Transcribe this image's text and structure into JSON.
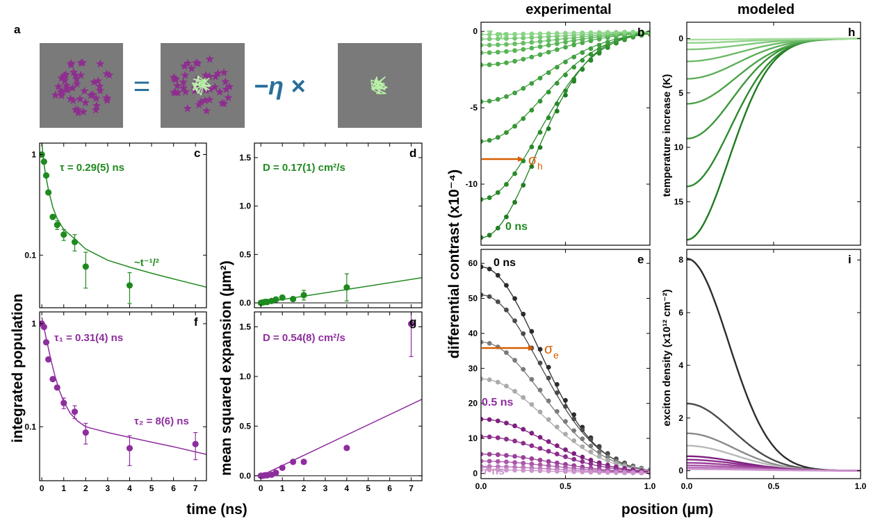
{
  "headers": {
    "left": "experimental",
    "right": "modeled"
  },
  "xlabels": {
    "left": "time (ns)",
    "right": "position (µm)"
  },
  "ylabels": {
    "population": "integrated population",
    "msd": "mean squared expansion (µm²)",
    "contrast": "differential contrast (x10⁻⁴)",
    "temperature": "temperature increase (K)",
    "density": "exciton density (x10¹² cm⁻²)"
  },
  "panel_a": {
    "label": "a",
    "equals": "=",
    "minus_eta": "−η ×",
    "colors": {
      "background": "#7a7a7a",
      "exciton": "#8e2e8e",
      "heat": "#b8f0a8"
    }
  },
  "chart_data": [
    {
      "id": "c",
      "label": "c",
      "type": "scatter",
      "yscale": "log",
      "xlim": [
        -0.1,
        7.5
      ],
      "ylim": [
        0.03,
        1.3
      ],
      "xticks": [
        0,
        1,
        2,
        3,
        4,
        5,
        6,
        7
      ],
      "yticks": [
        0.1,
        1
      ],
      "yticklabels": [
        "0.1",
        "1"
      ],
      "color": "#1f8a1f",
      "annotations": [
        "τ = 0.29(5) ns",
        "~t⁻¹/²"
      ],
      "points": [
        {
          "x": 0.0,
          "y": 1.0,
          "err": 0
        },
        {
          "x": 0.1,
          "y": 0.85,
          "err": 0
        },
        {
          "x": 0.2,
          "y": 0.62,
          "err": 0
        },
        {
          "x": 0.3,
          "y": 0.42,
          "err": 0
        },
        {
          "x": 0.5,
          "y": 0.24,
          "err": 0
        },
        {
          "x": 0.7,
          "y": 0.2,
          "err": 0.02
        },
        {
          "x": 1.0,
          "y": 0.16,
          "err": 0.02
        },
        {
          "x": 1.5,
          "y": 0.135,
          "err": 0.025
        },
        {
          "x": 2.0,
          "y": 0.077,
          "err": 0.03
        },
        {
          "x": 4.0,
          "y": 0.05,
          "err": 0.017
        }
      ],
      "fit": {
        "x": [
          0.0,
          0.1,
          0.2,
          0.3,
          0.5,
          0.7,
          1.0,
          1.5,
          2.0,
          3.0,
          4.0,
          5.0,
          6.0,
          7.5
        ],
        "y": [
          1.3,
          0.8,
          0.58,
          0.45,
          0.3,
          0.23,
          0.18,
          0.145,
          0.115,
          0.089,
          0.076,
          0.066,
          0.058,
          0.048
        ]
      }
    },
    {
      "id": "d",
      "label": "d",
      "type": "scatter",
      "xlim": [
        -0.3,
        7.5
      ],
      "ylim": [
        -0.05,
        1.65
      ],
      "xticks": [
        0,
        1,
        2,
        3,
        4,
        5,
        6,
        7
      ],
      "yticks": [
        0,
        0.5,
        1,
        1.5
      ],
      "yticklabels": [
        "0.0",
        "0.5",
        "1.0",
        "1.5"
      ],
      "color": "#1f8a1f",
      "annotations": [
        "D = 0.17(1) cm²/s"
      ],
      "points": [
        {
          "x": 0.0,
          "y": 0.0,
          "err": 0
        },
        {
          "x": 0.1,
          "y": 0.005,
          "err": 0
        },
        {
          "x": 0.2,
          "y": 0.01,
          "err": 0
        },
        {
          "x": 0.3,
          "y": 0.01,
          "err": 0
        },
        {
          "x": 0.5,
          "y": 0.02,
          "err": 0
        },
        {
          "x": 0.7,
          "y": 0.035,
          "err": 0
        },
        {
          "x": 1.0,
          "y": 0.055,
          "err": 0
        },
        {
          "x": 1.5,
          "y": 0.04,
          "err": 0
        },
        {
          "x": 2.0,
          "y": 0.08,
          "err": 0.05
        },
        {
          "x": 4.0,
          "y": 0.16,
          "err": 0.14
        }
      ],
      "fit": {
        "x": [
          0,
          7.5
        ],
        "y": [
          0.0,
          0.26
        ]
      }
    },
    {
      "id": "f",
      "label": "f",
      "type": "scatter",
      "yscale": "log",
      "xlim": [
        -0.1,
        7.5
      ],
      "ylim": [
        0.03,
        1.3
      ],
      "xticks": [
        0,
        1,
        2,
        3,
        4,
        5,
        6,
        7
      ],
      "yticks": [
        0.1,
        1
      ],
      "yticklabels": [
        "0.1",
        "1"
      ],
      "color": "#8e2e9e",
      "annotations": [
        "τ₁ = 0.31(4) ns",
        "τ₂ = 8(6) ns"
      ],
      "points": [
        {
          "x": 0.0,
          "y": 1.0,
          "err": 0
        },
        {
          "x": 0.1,
          "y": 0.93,
          "err": 0
        },
        {
          "x": 0.2,
          "y": 0.66,
          "err": 0
        },
        {
          "x": 0.3,
          "y": 0.45,
          "err": 0
        },
        {
          "x": 0.5,
          "y": 0.29,
          "err": 0
        },
        {
          "x": 0.7,
          "y": 0.24,
          "err": 0
        },
        {
          "x": 1.0,
          "y": 0.17,
          "err": 0.02
        },
        {
          "x": 1.5,
          "y": 0.14,
          "err": 0.02
        },
        {
          "x": 2.0,
          "y": 0.088,
          "err": 0.02
        },
        {
          "x": 4.0,
          "y": 0.062,
          "err": 0.02
        },
        {
          "x": 7.0,
          "y": 0.068,
          "err": 0.02
        }
      ],
      "fit": {
        "x": [
          0.0,
          0.2,
          0.4,
          0.6,
          0.8,
          1.0,
          1.3,
          1.6,
          2.0,
          3.0,
          4.0,
          5.0,
          6.0,
          7.5
        ],
        "y": [
          1.15,
          0.72,
          0.46,
          0.31,
          0.225,
          0.175,
          0.135,
          0.115,
          0.1,
          0.088,
          0.079,
          0.071,
          0.064,
          0.054
        ]
      }
    },
    {
      "id": "g",
      "label": "g",
      "type": "scatter",
      "xlim": [
        -0.3,
        7.5
      ],
      "ylim": [
        -0.05,
        1.65
      ],
      "xticks": [
        0,
        1,
        2,
        3,
        4,
        5,
        6,
        7
      ],
      "yticks": [
        0,
        0.5,
        1,
        1.5
      ],
      "yticklabels": [
        "0.0",
        "0.5",
        "1.0",
        "1.5"
      ],
      "color": "#8e2e9e",
      "annotations": [
        "D = 0.54(8) cm²/s"
      ],
      "points": [
        {
          "x": 0.0,
          "y": 0.0,
          "err": 0
        },
        {
          "x": 0.1,
          "y": 0.0,
          "err": 0
        },
        {
          "x": 0.2,
          "y": 0.005,
          "err": 0
        },
        {
          "x": 0.3,
          "y": 0.005,
          "err": 0
        },
        {
          "x": 0.5,
          "y": 0.01,
          "err": 0
        },
        {
          "x": 0.7,
          "y": 0.03,
          "err": 0
        },
        {
          "x": 1.0,
          "y": 0.08,
          "err": 0
        },
        {
          "x": 1.5,
          "y": 0.14,
          "err": 0
        },
        {
          "x": 2.0,
          "y": 0.14,
          "err": 0
        },
        {
          "x": 4.0,
          "y": 0.28,
          "err": 0
        },
        {
          "x": 7.0,
          "y": 1.53,
          "err": 0.33
        }
      ],
      "fit": {
        "x": [
          -0.1,
          7.5
        ],
        "y": [
          -0.01,
          0.77
        ]
      }
    },
    {
      "id": "b",
      "label": "b",
      "type": "line",
      "xlim": [
        0,
        1.0
      ],
      "ylim": [
        -14,
        0.6
      ],
      "yticks": [
        0,
        -5,
        -10
      ],
      "yticklabels": [
        "0",
        "-5",
        "-10"
      ],
      "annotations": [
        "7 ns",
        "0 ns",
        "σ",
        "h"
      ],
      "series": [
        {
          "amp": -13.5,
          "sigma": 0.32,
          "color": "#217d21"
        },
        {
          "amp": -11.0,
          "sigma": 0.34,
          "color": "#2a8a2a"
        },
        {
          "amp": -7.2,
          "sigma": 0.36,
          "color": "#349634"
        },
        {
          "amp": -4.6,
          "sigma": 0.38,
          "color": "#40a040"
        },
        {
          "amp": -2.2,
          "sigma": 0.4,
          "color": "#4caa4a"
        },
        {
          "amp": -1.4,
          "sigma": 0.42,
          "color": "#58b455"
        },
        {
          "amp": -0.9,
          "sigma": 0.44,
          "color": "#68be64"
        },
        {
          "amp": -0.5,
          "sigma": 0.46,
          "color": "#78c874"
        },
        {
          "amp": -0.2,
          "sigma": 0.48,
          "color": "#8cd488"
        }
      ]
    },
    {
      "id": "h",
      "label": "h",
      "type": "line",
      "xlim": [
        0,
        1.0
      ],
      "ylim": [
        19,
        -1.5
      ],
      "yticks": [
        0,
        5,
        10,
        15
      ],
      "yticklabels": [
        "0",
        "5",
        "10",
        "15"
      ],
      "series": [
        {
          "amp": 18.5,
          "sigma": 0.24,
          "color": "#1f7a1f"
        },
        {
          "amp": 13.6,
          "sigma": 0.25,
          "color": "#2e8a2e"
        },
        {
          "amp": 9.2,
          "sigma": 0.26,
          "color": "#3c963c"
        },
        {
          "amp": 6.0,
          "sigma": 0.28,
          "color": "#4ca24a"
        },
        {
          "amp": 3.7,
          "sigma": 0.29,
          "color": "#5cae58"
        },
        {
          "amp": 2.1,
          "sigma": 0.3,
          "color": "#6eba68"
        },
        {
          "amp": 1.0,
          "sigma": 0.31,
          "color": "#80c67a"
        },
        {
          "amp": 0.4,
          "sigma": 0.32,
          "color": "#94d28e"
        },
        {
          "amp": 0.1,
          "sigma": 0.33,
          "color": "#a8dea0"
        }
      ]
    },
    {
      "id": "e",
      "label": "e",
      "type": "line",
      "xlim": [
        0,
        1.0
      ],
      "ylim": [
        -1.5,
        64
      ],
      "yticks": [
        0,
        10,
        20,
        30,
        40,
        50,
        60
      ],
      "yticklabels": [
        "0",
        "10",
        "20",
        "30",
        "40",
        "50",
        "60"
      ],
      "annotations": [
        "0 ns",
        "0.5 ns",
        "7 ns",
        "σ",
        "e"
      ],
      "series": [
        {
          "amp": 59,
          "sigma": 0.34,
          "color": "#2b2b2b"
        },
        {
          "amp": 51,
          "sigma": 0.35,
          "color": "#4a4a4a"
        },
        {
          "amp": 37.5,
          "sigma": 0.36,
          "color": "#7a7a7a"
        },
        {
          "amp": 27,
          "sigma": 0.37,
          "color": "#aaaaaa"
        },
        {
          "amp": 15.5,
          "sigma": 0.38,
          "color": "#7e1f7e"
        },
        {
          "amp": 10.5,
          "sigma": 0.39,
          "color": "#8c2e8c"
        },
        {
          "amp": 5.5,
          "sigma": 0.4,
          "color": "#9a409a"
        },
        {
          "amp": 3.5,
          "sigma": 0.41,
          "color": "#aa58aa"
        },
        {
          "amp": 2.0,
          "sigma": 0.42,
          "color": "#bb74bb"
        },
        {
          "amp": 1.0,
          "sigma": 0.43,
          "color": "#cc94cc"
        }
      ]
    },
    {
      "id": "i",
      "label": "i",
      "type": "line",
      "xlim": [
        0,
        1.0
      ],
      "ylim": [
        -0.3,
        8.4
      ],
      "yticks": [
        0,
        2,
        4,
        6,
        8
      ],
      "yticklabels": [
        "0",
        "2",
        "4",
        "6",
        "8"
      ],
      "series": [
        {
          "amp": 8.05,
          "sigma": 0.24,
          "color": "#2b2b2b"
        },
        {
          "amp": 2.55,
          "sigma": 0.26,
          "color": "#4a4a4a"
        },
        {
          "amp": 1.42,
          "sigma": 0.27,
          "color": "#8a8a8a"
        },
        {
          "amp": 0.95,
          "sigma": 0.28,
          "color": "#b8b8b8"
        },
        {
          "amp": 0.55,
          "sigma": 0.29,
          "color": "#7e1f7e"
        },
        {
          "amp": 0.42,
          "sigma": 0.3,
          "color": "#8c2e8c"
        },
        {
          "amp": 0.3,
          "sigma": 0.31,
          "color": "#9a409a"
        },
        {
          "amp": 0.2,
          "sigma": 0.32,
          "color": "#aa58aa"
        },
        {
          "amp": 0.12,
          "sigma": 0.33,
          "color": "#bb74bb"
        },
        {
          "amp": 0.06,
          "sigma": 0.34,
          "color": "#cc94cc"
        }
      ]
    }
  ]
}
